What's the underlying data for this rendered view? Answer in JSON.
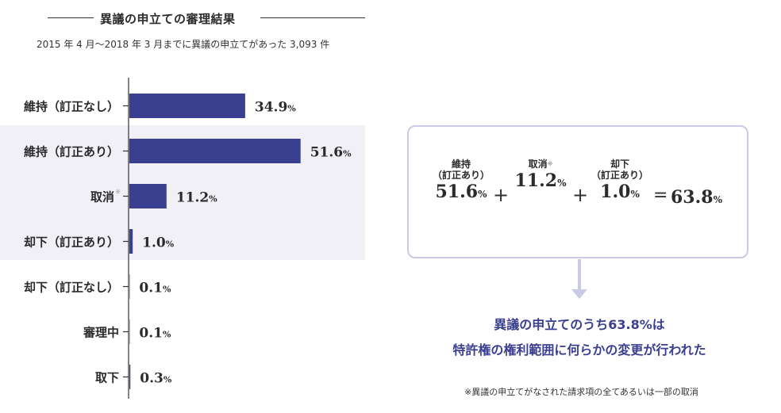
{
  "chart_data": {
    "type": "bar",
    "orientation": "horizontal",
    "title": "異議の申立ての審理結果",
    "subtitle": "2015 年 4 月〜2018 年 3 月までに異議の申立てがあった 3,093 件",
    "categories": [
      "維持（訂正なし）",
      "維持（訂正あり）",
      "取消",
      "却下（訂正あり）",
      "却下（訂正なし）",
      "審理中",
      "取下"
    ],
    "values": [
      34.9,
      51.6,
      11.2,
      1.0,
      0.1,
      0.1,
      0.3
    ],
    "value_labels": [
      "34.9",
      "51.6",
      "11.2",
      "1.0",
      "0.1",
      "0.1",
      "0.3"
    ],
    "unit": "%",
    "category_marks": [
      "",
      "",
      "※",
      "",
      "",
      "",
      ""
    ],
    "xlim": [
      0,
      55
    ],
    "grid": false,
    "colors": {
      "bar": "#3a3f8f"
    }
  },
  "summary_box": {
    "terms": [
      {
        "label1": "維持",
        "label2": "（訂正あり）",
        "value": "51.6",
        "unit": "%"
      },
      {
        "label1": "",
        "label2": "取消",
        "mark": "※",
        "value": "11.2",
        "unit": "%"
      },
      {
        "label1": "却下",
        "label2": "（訂正あり）",
        "value": "1.0",
        "unit": "%"
      }
    ],
    "plus": "+",
    "equals": "=",
    "total": "63.8",
    "total_unit": "%"
  },
  "conclusion": {
    "line1": "異議の申立てのうち63.8%は",
    "line2": "特許権の権利範囲に何らかの変更が行われた"
  },
  "footnote": "※異議の申立てがなされた請求項の全てあるいは一部の取消",
  "colors": {
    "accent": "#3a3f8f",
    "box_border": "#c9cae6",
    "shade": "#f0f0f6"
  }
}
